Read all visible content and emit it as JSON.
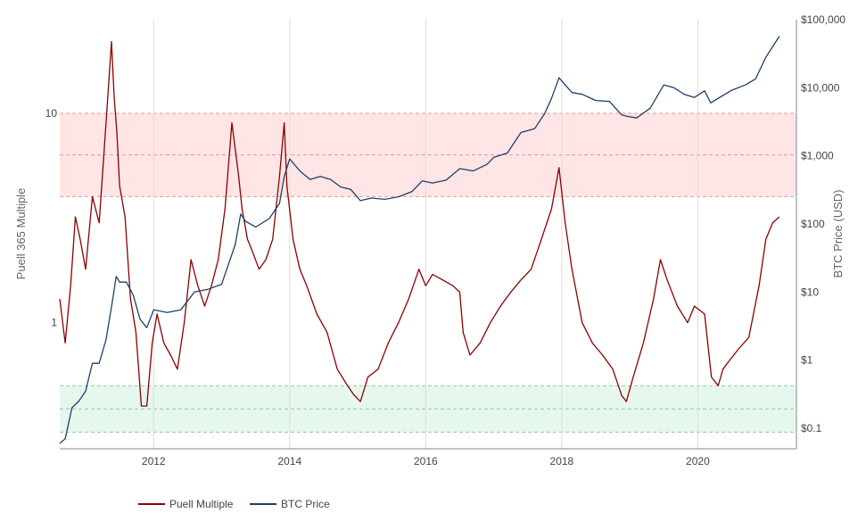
{
  "chart_data": {
    "type": "line",
    "title": "",
    "colors": {
      "puell": "#8b0000",
      "btc": "#1f3f67",
      "high_band": "#ffe5e6",
      "low_band": "#e6f8ee",
      "high_band_line": "#e89a9a",
      "low_band_line": "#8fcaa6",
      "grid": "#dddddd"
    },
    "x_axis": {
      "ticks": [
        "2012",
        "2014",
        "2016",
        "2018",
        "2020"
      ],
      "range": [
        2010.62,
        2021.45
      ]
    },
    "y_left": {
      "label": "Puell 365 Multiple",
      "scale": "log",
      "range": [
        0.25,
        28
      ],
      "ticks": [
        "1",
        "10"
      ]
    },
    "y_right": {
      "label": "BTC Price (USD)",
      "scale": "log",
      "range": [
        0.05,
        100000
      ],
      "ticks": [
        "$0.1",
        "$1",
        "$10",
        "$100",
        "$1,000",
        "$10,000",
        "$100,000"
      ]
    },
    "bands": [
      {
        "name": "high",
        "range": [
          4,
          10
        ]
      },
      {
        "name": "low",
        "range": [
          0.3,
          0.5
        ]
      }
    ],
    "series": [
      {
        "name": "Puell Multiple",
        "x": [
          2010.62,
          2010.7,
          2010.78,
          2010.85,
          2010.92,
          2011.0,
          2011.1,
          2011.2,
          2011.3,
          2011.38,
          2011.42,
          2011.46,
          2011.5,
          2011.58,
          2011.66,
          2011.74,
          2011.82,
          2011.9,
          2011.98,
          2012.05,
          2012.15,
          2012.25,
          2012.35,
          2012.45,
          2012.55,
          2012.65,
          2012.75,
          2012.85,
          2012.95,
          2013.05,
          2013.15,
          2013.25,
          2013.3,
          2013.38,
          2013.45,
          2013.55,
          2013.65,
          2013.75,
          2013.85,
          2013.92,
          2013.96,
          2014.05,
          2014.15,
          2014.25,
          2014.4,
          2014.55,
          2014.7,
          2014.85,
          2014.95,
          2015.04,
          2015.15,
          2015.3,
          2015.45,
          2015.6,
          2015.75,
          2015.9,
          2016.0,
          2016.1,
          2016.25,
          2016.4,
          2016.5,
          2016.55,
          2016.65,
          2016.8,
          2016.95,
          2017.1,
          2017.25,
          2017.4,
          2017.55,
          2017.7,
          2017.85,
          2017.96,
          2018.05,
          2018.15,
          2018.3,
          2018.45,
          2018.6,
          2018.75,
          2018.88,
          2018.95,
          2019.05,
          2019.2,
          2019.35,
          2019.45,
          2019.55,
          2019.7,
          2019.85,
          2019.95,
          2020.1,
          2020.2,
          2020.3,
          2020.37,
          2020.45,
          2020.6,
          2020.75,
          2020.9,
          2021.0,
          2021.1,
          2021.2
        ],
        "values": [
          1.3,
          0.8,
          1.5,
          3.2,
          2.5,
          1.8,
          4.0,
          3.0,
          9.0,
          22.0,
          12.0,
          8.0,
          4.5,
          3.2,
          1.3,
          0.9,
          0.4,
          0.4,
          0.8,
          1.1,
          0.8,
          0.7,
          0.6,
          1.0,
          2.0,
          1.5,
          1.2,
          1.5,
          2.0,
          3.5,
          9.0,
          5.0,
          3.5,
          2.5,
          2.2,
          1.8,
          2.0,
          2.5,
          5.0,
          9.0,
          4.5,
          2.5,
          1.8,
          1.5,
          1.1,
          0.9,
          0.6,
          0.5,
          0.45,
          0.42,
          0.55,
          0.6,
          0.8,
          1.0,
          1.3,
          1.8,
          1.5,
          1.7,
          1.6,
          1.5,
          1.4,
          0.9,
          0.7,
          0.8,
          1.0,
          1.2,
          1.4,
          1.6,
          1.8,
          2.5,
          3.5,
          5.5,
          3.0,
          1.8,
          1.0,
          0.8,
          0.7,
          0.6,
          0.45,
          0.42,
          0.55,
          0.8,
          1.3,
          2.0,
          1.6,
          1.2,
          1.0,
          1.2,
          1.1,
          0.55,
          0.5,
          0.6,
          0.65,
          0.75,
          0.85,
          1.5,
          2.5,
          3.0,
          3.2
        ]
      },
      {
        "name": "BTC Price",
        "x": [
          2010.62,
          2010.7,
          2010.8,
          2010.9,
          2011.0,
          2011.1,
          2011.2,
          2011.3,
          2011.4,
          2011.45,
          2011.5,
          2011.6,
          2011.7,
          2011.8,
          2011.9,
          2012.0,
          2012.2,
          2012.4,
          2012.6,
          2012.8,
          2013.0,
          2013.2,
          2013.28,
          2013.35,
          2013.5,
          2013.7,
          2013.85,
          2013.92,
          2014.0,
          2014.15,
          2014.3,
          2014.45,
          2014.6,
          2014.75,
          2014.9,
          2015.04,
          2015.2,
          2015.4,
          2015.6,
          2015.8,
          2015.95,
          2016.1,
          2016.3,
          2016.5,
          2016.7,
          2016.9,
          2017.0,
          2017.2,
          2017.4,
          2017.6,
          2017.75,
          2017.85,
          2017.96,
          2018.05,
          2018.15,
          2018.3,
          2018.5,
          2018.7,
          2018.88,
          2018.96,
          2019.1,
          2019.3,
          2019.5,
          2019.65,
          2019.8,
          2019.95,
          2020.1,
          2020.19,
          2020.3,
          2020.5,
          2020.7,
          2020.85,
          2021.0,
          2021.1,
          2021.2
        ],
        "values": [
          0.06,
          0.07,
          0.2,
          0.25,
          0.35,
          0.9,
          0.9,
          2.0,
          8.0,
          17.0,
          14.0,
          14.0,
          9.0,
          4.0,
          3.0,
          5.5,
          5.0,
          5.5,
          10.0,
          11.0,
          13.0,
          50.0,
          140.0,
          110.0,
          90.0,
          120.0,
          200.0,
          500.0,
          900.0,
          600.0,
          450.0,
          500.0,
          450.0,
          350.0,
          320.0,
          220.0,
          240.0,
          230.0,
          250.0,
          300.0,
          430.0,
          400.0,
          440.0,
          650.0,
          600.0,
          750.0,
          950.0,
          1100.0,
          2200.0,
          2500.0,
          4200.0,
          7000.0,
          14000.0,
          11000.0,
          8500.0,
          8000.0,
          6500.0,
          6300.0,
          4000.0,
          3800.0,
          3600.0,
          5000.0,
          11000.0,
          10000.0,
          8000.0,
          7200.0,
          9000.0,
          6000.0,
          7000.0,
          9200.0,
          11000.0,
          13500.0,
          28000.0,
          40000.0,
          57000.0
        ]
      }
    ],
    "legend": {
      "position": "bottom-left",
      "entries": [
        "Puell Multiple",
        "BTC Price"
      ]
    },
    "grid": true
  }
}
